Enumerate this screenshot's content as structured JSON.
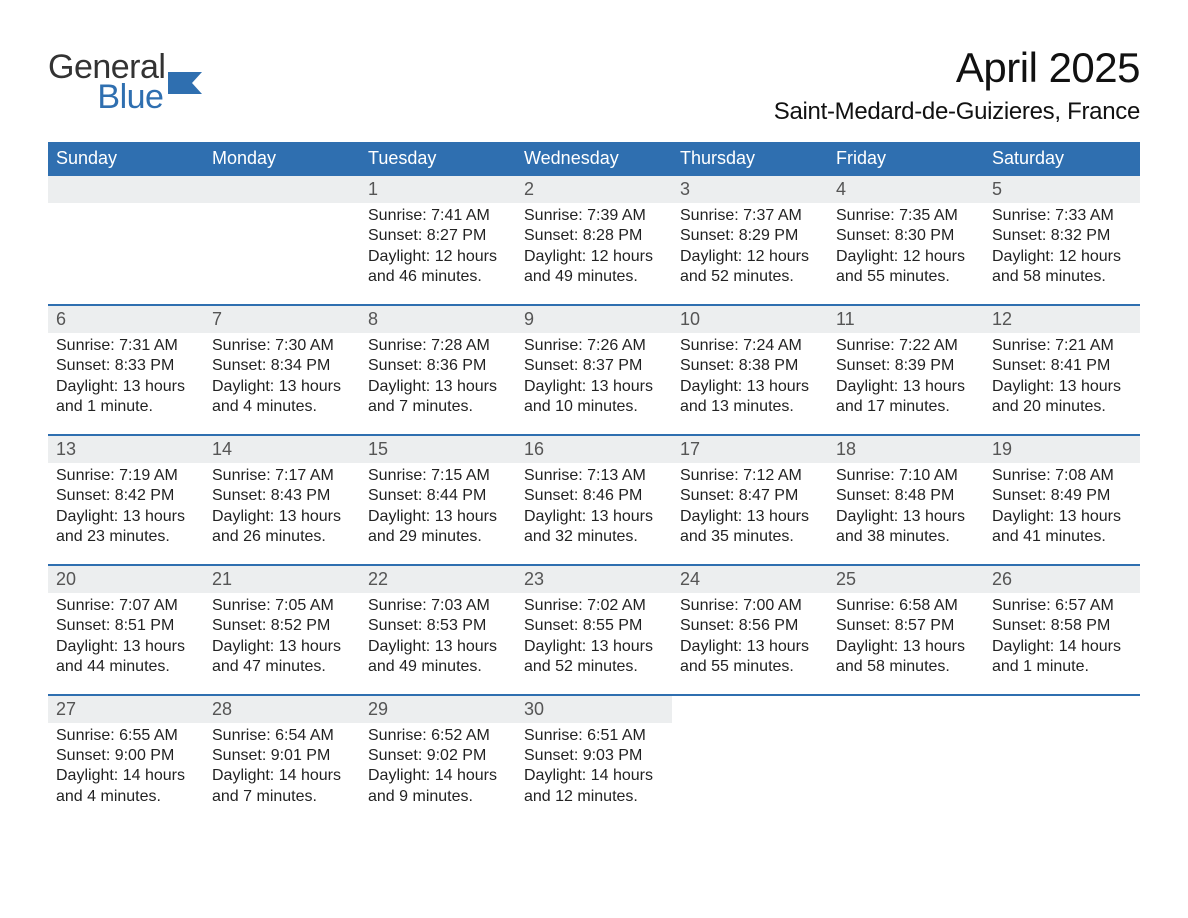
{
  "brand": {
    "word1": "General",
    "word2": "Blue",
    "flag_color": "#2f6fb0",
    "text_color": "#333333"
  },
  "header": {
    "title": "April 2025",
    "location": "Saint-Medard-de-Guizieres, France"
  },
  "colors": {
    "header_bg": "#2f6fb0",
    "row_top_border": "#2f6fb0",
    "daynum_bg": "#eceeef",
    "page_bg": "#ffffff",
    "text": "#222222"
  },
  "weekdays": [
    "Sunday",
    "Monday",
    "Tuesday",
    "Wednesday",
    "Thursday",
    "Friday",
    "Saturday"
  ],
  "weeks": [
    [
      null,
      null,
      {
        "n": "1",
        "sunrise": "7:41 AM",
        "sunset": "8:27 PM",
        "daylight": "12 hours and 46 minutes."
      },
      {
        "n": "2",
        "sunrise": "7:39 AM",
        "sunset": "8:28 PM",
        "daylight": "12 hours and 49 minutes."
      },
      {
        "n": "3",
        "sunrise": "7:37 AM",
        "sunset": "8:29 PM",
        "daylight": "12 hours and 52 minutes."
      },
      {
        "n": "4",
        "sunrise": "7:35 AM",
        "sunset": "8:30 PM",
        "daylight": "12 hours and 55 minutes."
      },
      {
        "n": "5",
        "sunrise": "7:33 AM",
        "sunset": "8:32 PM",
        "daylight": "12 hours and 58 minutes."
      }
    ],
    [
      {
        "n": "6",
        "sunrise": "7:31 AM",
        "sunset": "8:33 PM",
        "daylight": "13 hours and 1 minute."
      },
      {
        "n": "7",
        "sunrise": "7:30 AM",
        "sunset": "8:34 PM",
        "daylight": "13 hours and 4 minutes."
      },
      {
        "n": "8",
        "sunrise": "7:28 AM",
        "sunset": "8:36 PM",
        "daylight": "13 hours and 7 minutes."
      },
      {
        "n": "9",
        "sunrise": "7:26 AM",
        "sunset": "8:37 PM",
        "daylight": "13 hours and 10 minutes."
      },
      {
        "n": "10",
        "sunrise": "7:24 AM",
        "sunset": "8:38 PM",
        "daylight": "13 hours and 13 minutes."
      },
      {
        "n": "11",
        "sunrise": "7:22 AM",
        "sunset": "8:39 PM",
        "daylight": "13 hours and 17 minutes."
      },
      {
        "n": "12",
        "sunrise": "7:21 AM",
        "sunset": "8:41 PM",
        "daylight": "13 hours and 20 minutes."
      }
    ],
    [
      {
        "n": "13",
        "sunrise": "7:19 AM",
        "sunset": "8:42 PM",
        "daylight": "13 hours and 23 minutes."
      },
      {
        "n": "14",
        "sunrise": "7:17 AM",
        "sunset": "8:43 PM",
        "daylight": "13 hours and 26 minutes."
      },
      {
        "n": "15",
        "sunrise": "7:15 AM",
        "sunset": "8:44 PM",
        "daylight": "13 hours and 29 minutes."
      },
      {
        "n": "16",
        "sunrise": "7:13 AM",
        "sunset": "8:46 PM",
        "daylight": "13 hours and 32 minutes."
      },
      {
        "n": "17",
        "sunrise": "7:12 AM",
        "sunset": "8:47 PM",
        "daylight": "13 hours and 35 minutes."
      },
      {
        "n": "18",
        "sunrise": "7:10 AM",
        "sunset": "8:48 PM",
        "daylight": "13 hours and 38 minutes."
      },
      {
        "n": "19",
        "sunrise": "7:08 AM",
        "sunset": "8:49 PM",
        "daylight": "13 hours and 41 minutes."
      }
    ],
    [
      {
        "n": "20",
        "sunrise": "7:07 AM",
        "sunset": "8:51 PM",
        "daylight": "13 hours and 44 minutes."
      },
      {
        "n": "21",
        "sunrise": "7:05 AM",
        "sunset": "8:52 PM",
        "daylight": "13 hours and 47 minutes."
      },
      {
        "n": "22",
        "sunrise": "7:03 AM",
        "sunset": "8:53 PM",
        "daylight": "13 hours and 49 minutes."
      },
      {
        "n": "23",
        "sunrise": "7:02 AM",
        "sunset": "8:55 PM",
        "daylight": "13 hours and 52 minutes."
      },
      {
        "n": "24",
        "sunrise": "7:00 AM",
        "sunset": "8:56 PM",
        "daylight": "13 hours and 55 minutes."
      },
      {
        "n": "25",
        "sunrise": "6:58 AM",
        "sunset": "8:57 PM",
        "daylight": "13 hours and 58 minutes."
      },
      {
        "n": "26",
        "sunrise": "6:57 AM",
        "sunset": "8:58 PM",
        "daylight": "14 hours and 1 minute."
      }
    ],
    [
      {
        "n": "27",
        "sunrise": "6:55 AM",
        "sunset": "9:00 PM",
        "daylight": "14 hours and 4 minutes."
      },
      {
        "n": "28",
        "sunrise": "6:54 AM",
        "sunset": "9:01 PM",
        "daylight": "14 hours and 7 minutes."
      },
      {
        "n": "29",
        "sunrise": "6:52 AM",
        "sunset": "9:02 PM",
        "daylight": "14 hours and 9 minutes."
      },
      {
        "n": "30",
        "sunrise": "6:51 AM",
        "sunset": "9:03 PM",
        "daylight": "14 hours and 12 minutes."
      },
      null,
      null,
      null
    ]
  ],
  "labels": {
    "sunrise": "Sunrise: ",
    "sunset": "Sunset: ",
    "daylight": "Daylight: "
  }
}
